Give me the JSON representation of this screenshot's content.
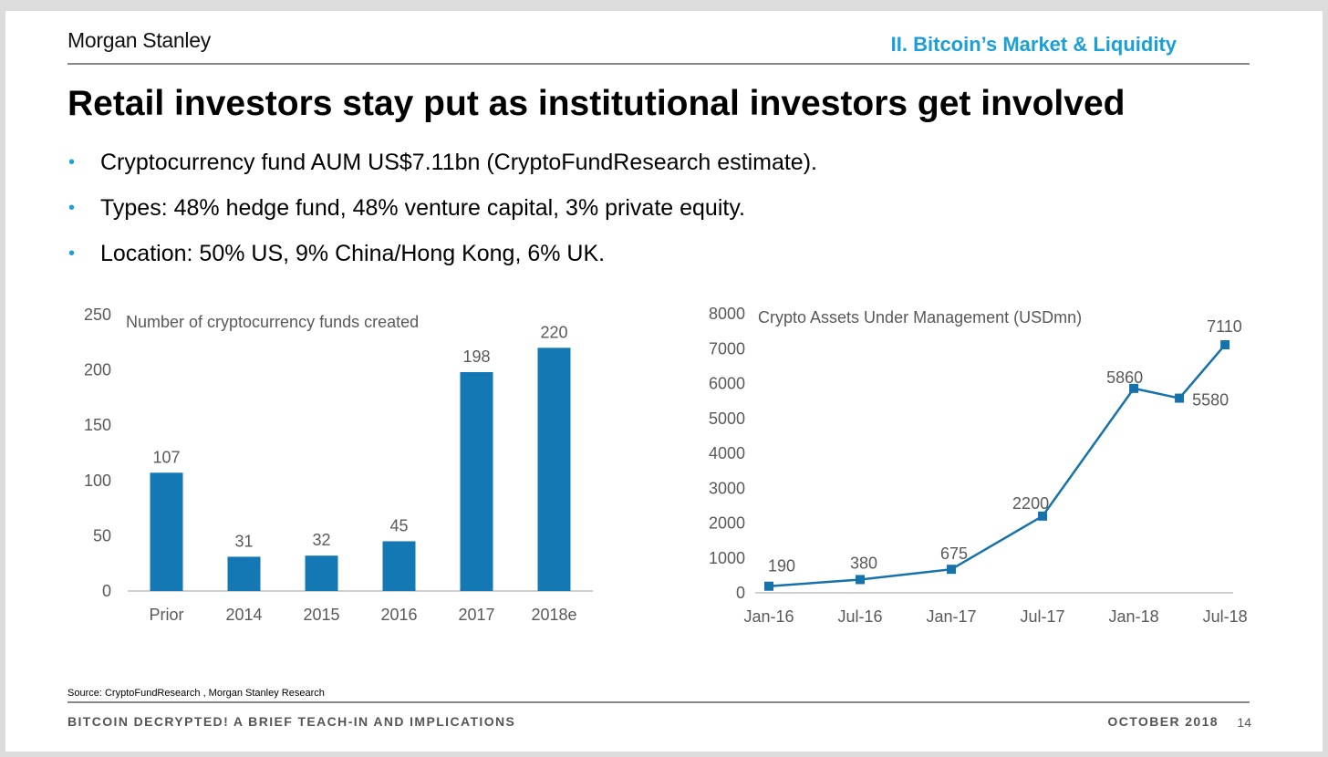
{
  "header": {
    "logo": "Morgan Stanley",
    "section": "II. Bitcoin’s Market & Liquidity",
    "title": "Retail investors stay put as institutional investors get involved"
  },
  "bullets": [
    "Cryptocurrency fund AUM US$7.11bn (CryptoFundResearch estimate).",
    "Types: 48% hedge fund, 48% venture capital, 3% private equity.",
    "Location: 50% US, 9% China/Hong Kong, 6% UK."
  ],
  "colors": {
    "accent": "#1a9fd9",
    "bar": "#1478b4",
    "line": "#1672aa",
    "axis_text": "#595959"
  },
  "chart_data": [
    {
      "type": "bar",
      "title": "Number of cryptocurrency funds created",
      "categories": [
        "Prior",
        "2014",
        "2015",
        "2016",
        "2017",
        "2018e"
      ],
      "values": [
        107,
        31,
        32,
        45,
        198,
        220
      ],
      "data_labels": [
        "107",
        "31",
        "32",
        "45",
        "198",
        "220"
      ],
      "ylim": [
        0,
        250
      ],
      "yticks": [
        0,
        50,
        100,
        150,
        200,
        250
      ],
      "xlabel": "",
      "ylabel": "",
      "grid": false,
      "legend": "none"
    },
    {
      "type": "line",
      "title": "Crypto Assets Under Management (USDmn)",
      "x": [
        "Jan-16",
        "Jul-16",
        "Jan-17",
        "Jul-17",
        "Jan-18",
        "Apr-18",
        "Jul-18"
      ],
      "values": [
        190,
        380,
        675,
        2200,
        5860,
        5580,
        7110
      ],
      "data_labels": [
        "190",
        "380",
        "675",
        "2200",
        "5860",
        "5580",
        "7110"
      ],
      "x_tick_labels": [
        "Jan-16",
        "Jul-16",
        "Jan-17",
        "Jul-17",
        "Jan-18",
        "Jul-18"
      ],
      "ylim": [
        0,
        8000
      ],
      "yticks": [
        0,
        1000,
        2000,
        3000,
        4000,
        5000,
        6000,
        7000,
        8000
      ],
      "xlabel": "",
      "ylabel": "",
      "grid": false,
      "legend": "none",
      "marker": "square"
    }
  ],
  "footer": {
    "source": "Source: CryptoFundResearch , Morgan Stanley Research",
    "left": "BITCOIN DECRYPTED! A BRIEF TEACH-IN AND IMPLICATIONS",
    "date": "OCTOBER 2018",
    "page": "14"
  }
}
